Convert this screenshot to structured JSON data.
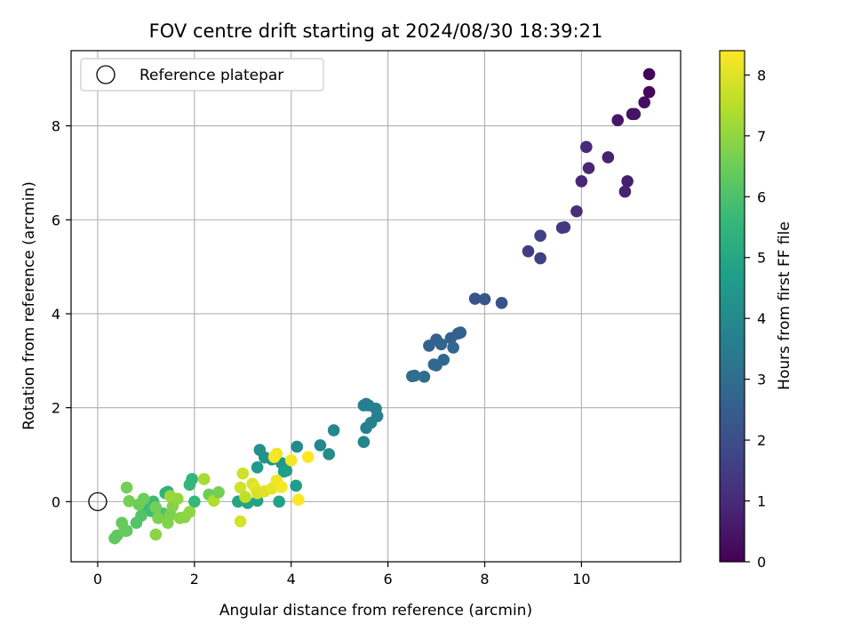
{
  "chart_data": {
    "type": "scatter",
    "title": "FOV centre drift starting at 2024/08/30 18:39:21",
    "xlabel": "Angular distance from reference (arcmin)",
    "ylabel": "Rotation from reference (arcmin)",
    "xlim": [
      -0.55,
      12.05
    ],
    "ylim": [
      -1.28,
      9.6
    ],
    "xticks": [
      0,
      2,
      4,
      6,
      8,
      10
    ],
    "yticks": [
      0,
      2,
      4,
      6,
      8
    ],
    "grid": true,
    "legend": {
      "placement": "top-left",
      "entries": [
        "Reference platepar"
      ]
    },
    "reference_point": {
      "x": 0,
      "y": 0,
      "label": "Reference platepar"
    },
    "colorbar": {
      "label": "Hours from first FF file",
      "colormap": "viridis",
      "min": 0,
      "max": 8.4,
      "ticks": [
        0,
        1,
        2,
        3,
        4,
        5,
        6,
        7,
        8
      ]
    },
    "series": [
      {
        "points": [
          {
            "x": 11.4,
            "y": 9.1,
            "c": 0.1
          },
          {
            "x": 11.4,
            "y": 8.72,
            "c": 0.2
          },
          {
            "x": 11.3,
            "y": 8.5,
            "c": 0.3
          },
          {
            "x": 11.05,
            "y": 8.25,
            "c": 0.4
          },
          {
            "x": 11.1,
            "y": 8.25,
            "c": 0.45
          },
          {
            "x": 10.75,
            "y": 8.12,
            "c": 0.5
          },
          {
            "x": 10.1,
            "y": 7.55,
            "c": 1.0
          },
          {
            "x": 10.15,
            "y": 7.1,
            "c": 0.9
          },
          {
            "x": 10.55,
            "y": 7.33,
            "c": 0.8
          },
          {
            "x": 10.0,
            "y": 6.82,
            "c": 0.9
          },
          {
            "x": 10.95,
            "y": 6.82,
            "c": 0.7
          },
          {
            "x": 10.9,
            "y": 6.6,
            "c": 0.75
          },
          {
            "x": 9.9,
            "y": 6.18,
            "c": 1.1
          },
          {
            "x": 9.6,
            "y": 5.83,
            "c": 1.4
          },
          {
            "x": 9.65,
            "y": 5.84,
            "c": 1.45
          },
          {
            "x": 9.15,
            "y": 5.66,
            "c": 1.6
          },
          {
            "x": 8.9,
            "y": 5.33,
            "c": 1.5
          },
          {
            "x": 9.15,
            "y": 5.18,
            "c": 1.6
          },
          {
            "x": 7.8,
            "y": 4.32,
            "c": 2.2
          },
          {
            "x": 8.0,
            "y": 4.31,
            "c": 2.25
          },
          {
            "x": 8.35,
            "y": 4.23,
            "c": 2.1
          },
          {
            "x": 7.5,
            "y": 3.6,
            "c": 2.6
          },
          {
            "x": 7.45,
            "y": 3.58,
            "c": 2.65
          },
          {
            "x": 7.3,
            "y": 3.48,
            "c": 2.55
          },
          {
            "x": 7.0,
            "y": 3.45,
            "c": 2.6
          },
          {
            "x": 6.85,
            "y": 3.32,
            "c": 2.65
          },
          {
            "x": 7.1,
            "y": 3.35,
            "c": 2.7
          },
          {
            "x": 7.35,
            "y": 3.28,
            "c": 2.75
          },
          {
            "x": 7.15,
            "y": 3.02,
            "c": 2.8
          },
          {
            "x": 6.95,
            "y": 2.92,
            "c": 2.9
          },
          {
            "x": 7.0,
            "y": 2.9,
            "c": 2.85
          },
          {
            "x": 6.5,
            "y": 2.67,
            "c": 3.0
          },
          {
            "x": 6.55,
            "y": 2.68,
            "c": 3.05
          },
          {
            "x": 6.75,
            "y": 2.66,
            "c": 3.0
          },
          {
            "x": 5.5,
            "y": 2.05,
            "c": 3.6
          },
          {
            "x": 5.55,
            "y": 2.08,
            "c": 3.55
          },
          {
            "x": 5.6,
            "y": 2.05,
            "c": 3.6
          },
          {
            "x": 5.75,
            "y": 1.98,
            "c": 3.65
          },
          {
            "x": 5.78,
            "y": 1.82,
            "c": 3.7
          },
          {
            "x": 5.65,
            "y": 1.68,
            "c": 3.75
          },
          {
            "x": 5.55,
            "y": 1.57,
            "c": 3.7
          },
          {
            "x": 5.5,
            "y": 1.27,
            "c": 3.8
          },
          {
            "x": 4.88,
            "y": 1.52,
            "c": 3.9
          },
          {
            "x": 4.6,
            "y": 1.2,
            "c": 3.9
          },
          {
            "x": 4.12,
            "y": 1.17,
            "c": 4.0
          },
          {
            "x": 4.78,
            "y": 1.01,
            "c": 4.1
          },
          {
            "x": 3.35,
            "y": 1.1,
            "c": 4.2
          },
          {
            "x": 3.6,
            "y": 0.9,
            "c": 4.3
          },
          {
            "x": 3.45,
            "y": 0.94,
            "c": 4.3
          },
          {
            "x": 3.8,
            "y": 0.82,
            "c": 4.4
          },
          {
            "x": 3.3,
            "y": 0.73,
            "c": 4.5
          },
          {
            "x": 3.9,
            "y": 0.66,
            "c": 4.6
          },
          {
            "x": 3.85,
            "y": 0.64,
            "c": 4.65
          },
          {
            "x": 4.1,
            "y": 0.34,
            "c": 4.7
          },
          {
            "x": 3.75,
            "y": 0.0,
            "c": 4.8
          },
          {
            "x": 3.3,
            "y": 0.02,
            "c": 4.8
          },
          {
            "x": 3.1,
            "y": -0.03,
            "c": 4.9
          },
          {
            "x": 2.9,
            "y": 0.0,
            "c": 4.9
          },
          {
            "x": 1.95,
            "y": 0.48,
            "c": 5.5
          },
          {
            "x": 1.9,
            "y": 0.36,
            "c": 5.6
          },
          {
            "x": 2.0,
            "y": 0.0,
            "c": 5.6
          },
          {
            "x": 1.45,
            "y": 0.21,
            "c": 5.3
          },
          {
            "x": 1.4,
            "y": 0.18,
            "c": 5.4
          },
          {
            "x": 1.15,
            "y": 0.0,
            "c": 5.7
          },
          {
            "x": 1.0,
            "y": -0.08,
            "c": 5.7
          },
          {
            "x": 1.1,
            "y": -0.2,
            "c": 5.8
          },
          {
            "x": 0.9,
            "y": -0.3,
            "c": 6.1
          },
          {
            "x": 1.35,
            "y": -0.25,
            "c": 6.0
          },
          {
            "x": 0.8,
            "y": -0.45,
            "c": 6.1
          },
          {
            "x": 0.6,
            "y": -0.62,
            "c": 6.2
          },
          {
            "x": 0.4,
            "y": -0.72,
            "c": 6.2
          },
          {
            "x": 0.35,
            "y": -0.78,
            "c": 6.3
          },
          {
            "x": 0.55,
            "y": -0.62,
            "c": 6.4
          },
          {
            "x": 0.5,
            "y": -0.45,
            "c": 6.4
          },
          {
            "x": 0.6,
            "y": 0.3,
            "c": 6.6
          },
          {
            "x": 0.65,
            "y": 0.01,
            "c": 6.6
          },
          {
            "x": 0.95,
            "y": 0.06,
            "c": 6.5
          },
          {
            "x": 0.85,
            "y": -0.06,
            "c": 6.5
          },
          {
            "x": 1.2,
            "y": -0.12,
            "c": 6.6
          },
          {
            "x": 1.25,
            "y": -0.35,
            "c": 6.7
          },
          {
            "x": 1.5,
            "y": -0.28,
            "c": 6.7
          },
          {
            "x": 1.55,
            "y": -0.1,
            "c": 6.8
          },
          {
            "x": 1.45,
            "y": -0.45,
            "c": 6.8
          },
          {
            "x": 1.7,
            "y": -0.35,
            "c": 6.9
          },
          {
            "x": 1.8,
            "y": -0.33,
            "c": 6.9
          },
          {
            "x": 1.65,
            "y": 0.06,
            "c": 7.0
          },
          {
            "x": 1.5,
            "y": 0.12,
            "c": 7.1
          },
          {
            "x": 1.2,
            "y": -0.7,
            "c": 6.9
          },
          {
            "x": 1.9,
            "y": -0.22,
            "c": 7.0
          },
          {
            "x": 2.2,
            "y": 0.48,
            "c": 7.3
          },
          {
            "x": 2.3,
            "y": 0.15,
            "c": 6.5
          },
          {
            "x": 2.4,
            "y": 0.02,
            "c": 7.4
          },
          {
            "x": 2.5,
            "y": 0.2,
            "c": 6.6
          },
          {
            "x": 2.95,
            "y": 0.3,
            "c": 7.8
          },
          {
            "x": 3.0,
            "y": 0.6,
            "c": 7.8
          },
          {
            "x": 2.95,
            "y": -0.42,
            "c": 7.9
          },
          {
            "x": 3.05,
            "y": 0.1,
            "c": 7.6
          },
          {
            "x": 3.2,
            "y": 0.38,
            "c": 8.0
          },
          {
            "x": 3.25,
            "y": 0.3,
            "c": 8.1
          },
          {
            "x": 3.3,
            "y": 0.18,
            "c": 7.9
          },
          {
            "x": 3.45,
            "y": 0.22,
            "c": 8.0
          },
          {
            "x": 3.6,
            "y": 0.28,
            "c": 8.1
          },
          {
            "x": 3.7,
            "y": 1.02,
            "c": 8.2
          },
          {
            "x": 3.65,
            "y": 0.95,
            "c": 8.3
          },
          {
            "x": 3.7,
            "y": 0.45,
            "c": 8.2
          },
          {
            "x": 3.8,
            "y": 0.31,
            "c": 8.3
          },
          {
            "x": 4.0,
            "y": 0.88,
            "c": 8.3
          },
          {
            "x": 4.35,
            "y": 0.95,
            "c": 8.4
          },
          {
            "x": 4.15,
            "y": 0.04,
            "c": 8.4
          }
        ]
      }
    ]
  }
}
